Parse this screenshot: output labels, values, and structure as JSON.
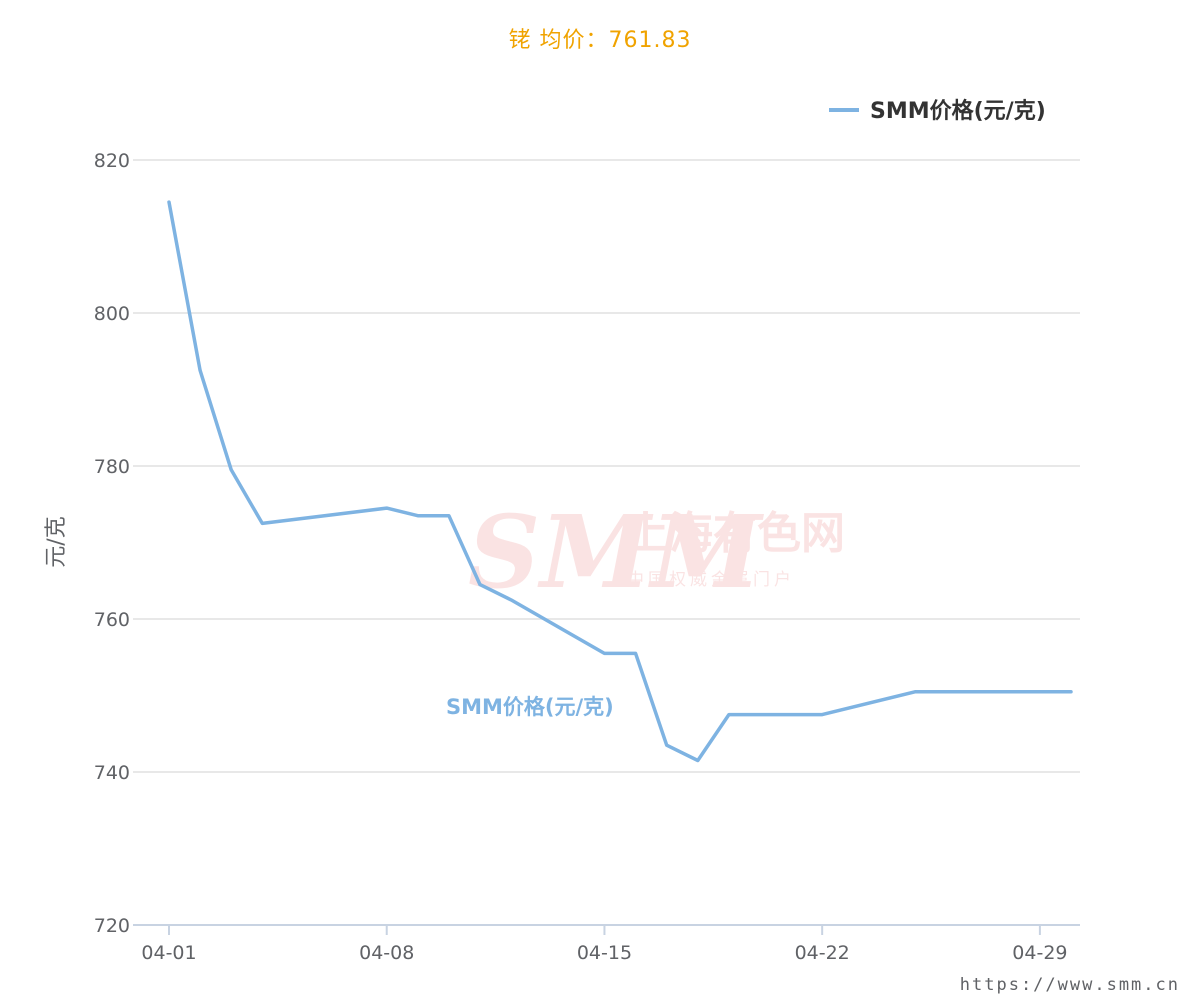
{
  "chart_data": {
    "type": "line",
    "title": "铑 均价：761.83",
    "ylabel": "元/克",
    "xlabel": "",
    "ylim": [
      720,
      820
    ],
    "yticks": [
      720,
      740,
      760,
      780,
      800,
      820
    ],
    "x_tick_labels": [
      "04-01",
      "04-08",
      "04-15",
      "04-22",
      "04-29"
    ],
    "x_tick_days": [
      1,
      8,
      15,
      22,
      29
    ],
    "x_range_days": [
      1,
      30
    ],
    "grid": true,
    "legend_position": "top-right",
    "series": [
      {
        "name": "SMM价格(元/克)",
        "color": "#7eb3e2",
        "x": [
          "04-01",
          "04-02",
          "04-03",
          "04-04",
          "04-08",
          "04-09",
          "04-10",
          "04-11",
          "04-12",
          "04-15",
          "04-16",
          "04-17",
          "04-18",
          "04-19",
          "04-22",
          "04-25",
          "04-30"
        ],
        "values": [
          814.5,
          792.5,
          779.5,
          772.5,
          774.5,
          773.5,
          773.5,
          764.5,
          762.5,
          755.5,
          755.5,
          743.5,
          741.5,
          747.5,
          747.5,
          750.5,
          750.5
        ]
      }
    ],
    "series_label": "SMM价格(元/克)"
  },
  "watermark": {
    "logo_text": "SMM",
    "name": "上海有色网",
    "slogan": "中国权威金属门户"
  },
  "footer": {
    "url": "https://www.smm.cn"
  }
}
